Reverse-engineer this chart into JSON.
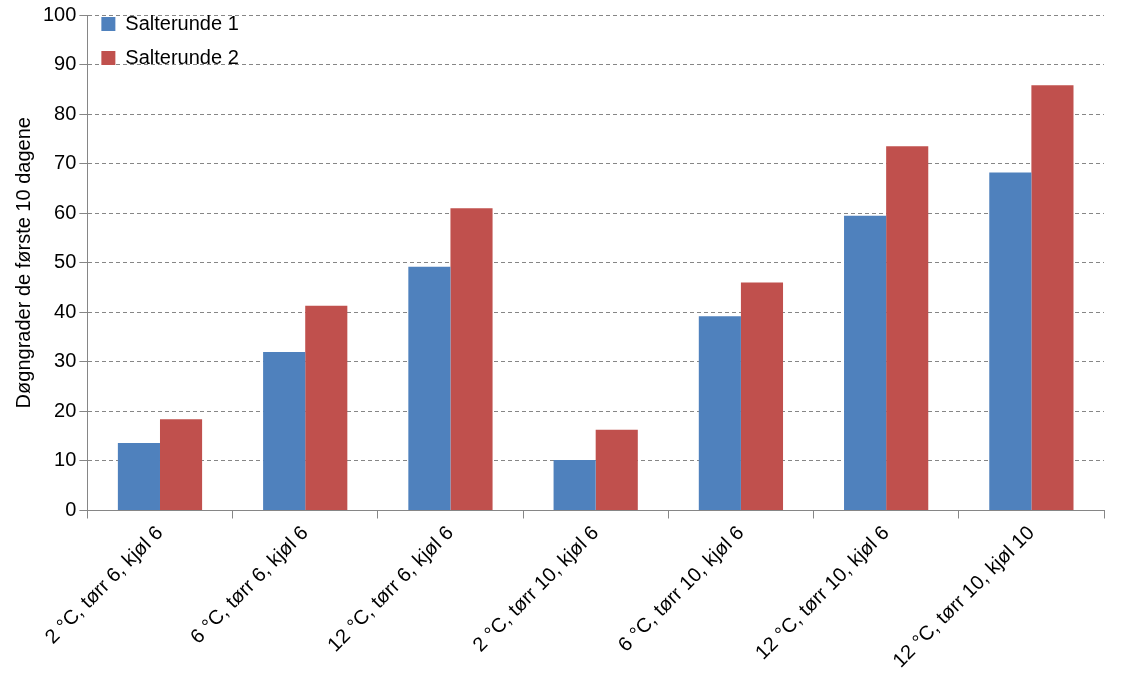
{
  "chart_data": {
    "type": "bar",
    "ylabel": "Døgngrader de første 10 dagene",
    "categories": [
      "2 °C, tørr 6, kjøl 6",
      "6 °C, tørr 6, kjøl 6",
      "12 °C, tørr 6, kjøl 6",
      "2 °C, tørr 10, kjøl 6",
      "6 °C, tørr 10, kjøl 6",
      "12 °C, tørr 10, kjøl 6",
      "12 °C, tørr 10, kjøl 10"
    ],
    "series": [
      {
        "name": "Salterunde 1",
        "color": "#4f81bd",
        "values": [
          13.6,
          32.0,
          49.2,
          10.2,
          39.2,
          59.5,
          68.2
        ]
      },
      {
        "name": "Salterunde 2",
        "color": "#c0504d",
        "values": [
          18.4,
          41.3,
          61.0,
          16.3,
          46.0,
          73.5,
          85.8
        ]
      }
    ],
    "ylim": [
      0,
      100
    ],
    "yticks": [
      0,
      10,
      20,
      30,
      40,
      50,
      60,
      70,
      80,
      90,
      100
    ],
    "grid": "y",
    "legend": "top left"
  }
}
